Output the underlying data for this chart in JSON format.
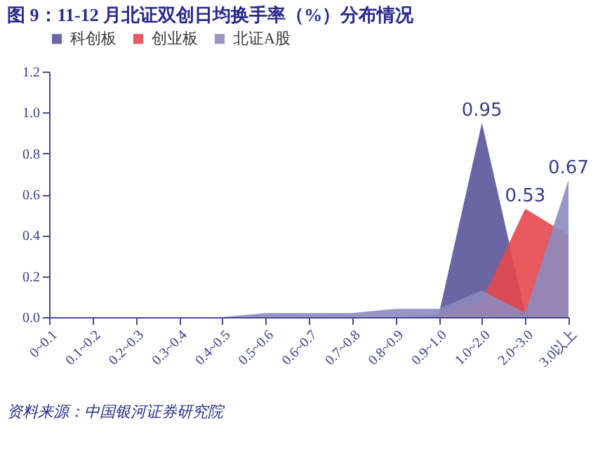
{
  "chart_data": {
    "type": "area",
    "title": "图 9：11-12 月北证双创日均换手率（%）分布情况",
    "categories": [
      "0~0.1",
      "0.1~0.2",
      "0.2~0.3",
      "0.3~0.4",
      "0.4~0.5",
      "0.5~0.6",
      "0.6~0.7",
      "0.7~0.8",
      "0.8~0.9",
      "0.9~1.0",
      "1.0~2.0",
      "2.0~3.0",
      "3.0以上"
    ],
    "series": [
      {
        "name": "科创板",
        "color": "#5b5499",
        "values": [
          0,
          0,
          0,
          0,
          0,
          0,
          0,
          0,
          0,
          0.01,
          0.95,
          0.02,
          0.02
        ],
        "value_labels": [
          null,
          null,
          null,
          null,
          null,
          null,
          null,
          null,
          null,
          null,
          "0.95",
          null,
          null
        ]
      },
      {
        "name": "创业板",
        "color": "#e5474f",
        "values": [
          0,
          0,
          0,
          0,
          0,
          0,
          0,
          0,
          0,
          0,
          0.08,
          0.53,
          0.4
        ],
        "value_labels": [
          null,
          null,
          null,
          null,
          null,
          null,
          null,
          null,
          null,
          null,
          null,
          "0.53",
          null
        ]
      },
      {
        "name": "北证A股",
        "color": "#8e8abf",
        "values": [
          0,
          0,
          0,
          0,
          0,
          0.02,
          0.02,
          0.02,
          0.04,
          0.04,
          0.13,
          0.02,
          0.67
        ],
        "value_labels": [
          null,
          null,
          null,
          null,
          null,
          null,
          null,
          null,
          null,
          null,
          null,
          null,
          "0.67"
        ]
      }
    ],
    "ylim": [
      0,
      1.2
    ],
    "yticks": [
      {
        "value": 0,
        "label": "0.0"
      },
      {
        "value": 0.2,
        "label": "0.2"
      },
      {
        "value": 0.4,
        "label": "0.4"
      },
      {
        "value": 0.6,
        "label": "0.6"
      },
      {
        "value": 0.8,
        "label": "0.8"
      },
      {
        "value": 1.0,
        "label": "1.0"
      },
      {
        "value": 1.2,
        "label": "1.2"
      }
    ],
    "grid": false,
    "legend": "top",
    "annotations": [
      "资料来源：中国银河证券研究院"
    ]
  }
}
